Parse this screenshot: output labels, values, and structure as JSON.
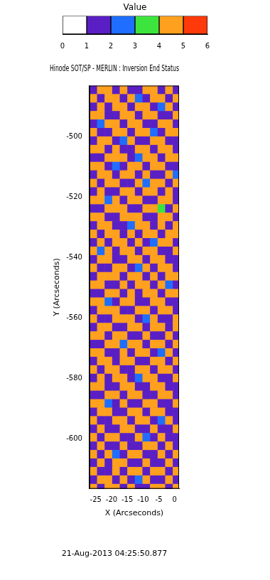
{
  "chart_data": {
    "type": "heatmap",
    "title": "Hinode SOT/SP - MERLIN : Inversion End Status",
    "subtitle": "21-Aug-2013 04:25:50.877",
    "x_label": "X (Arcseconds)",
    "y_label": "Y (Arcseconds)",
    "xlim": [
      -27,
      1.4
    ],
    "ylim": [
      -616.4,
      -483.2
    ],
    "xticks": [
      -25,
      -20,
      -15,
      -10,
      -5,
      0
    ],
    "yticks": [
      -600,
      -580,
      -560,
      -540,
      -520,
      -500
    ],
    "grid": false,
    "x": [
      -25.8,
      -23.4,
      -21,
      -18.6,
      -16.2,
      -13.8,
      -11.4,
      -9,
      -6.6,
      -4.2,
      -1.8,
      0.6
    ],
    "y": [
      -484.6,
      -487.4,
      -490.2,
      -493,
      -495.8,
      -498.6,
      -501.4,
      -504.2,
      -507,
      -509.8,
      -512.6,
      -515.4,
      -518.2,
      -521,
      -523.8,
      -526.6,
      -529.4,
      -532.2,
      -535,
      -537.8,
      -540.6,
      -543.4,
      -546.2,
      -549,
      -551.8,
      -554.6,
      -557.4,
      -560.2,
      -563,
      -565.8,
      -568.6,
      -571.4,
      -574.2,
      -577,
      -579.8,
      -582.6,
      -585.4,
      -588.2,
      -591,
      -593.8,
      -596.6,
      -599.4,
      -602.2,
      -605,
      -607.8,
      -610.6,
      -613.4,
      -616.2
    ],
    "cells": [
      [
        1,
        4,
        4,
        1,
        4,
        1,
        1,
        4,
        4,
        1,
        4,
        1
      ],
      [
        4,
        1,
        4,
        4,
        1,
        4,
        2,
        1,
        4,
        4,
        1,
        4
      ],
      [
        1,
        4,
        1,
        4,
        4,
        1,
        4,
        4,
        1,
        2,
        4,
        1
      ],
      [
        4,
        4,
        1,
        1,
        4,
        4,
        1,
        4,
        4,
        1,
        1,
        4
      ],
      [
        1,
        2,
        4,
        4,
        1,
        4,
        4,
        1,
        1,
        4,
        4,
        1
      ],
      [
        4,
        1,
        1,
        4,
        4,
        1,
        4,
        4,
        2,
        1,
        4,
        4
      ],
      [
        1,
        4,
        4,
        1,
        2,
        4,
        1,
        1,
        4,
        4,
        1,
        1
      ],
      [
        4,
        4,
        1,
        4,
        1,
        1,
        4,
        4,
        1,
        4,
        4,
        1
      ],
      [
        1,
        1,
        4,
        4,
        4,
        1,
        2,
        4,
        4,
        1,
        4,
        4
      ],
      [
        4,
        4,
        1,
        2,
        1,
        4,
        4,
        1,
        4,
        4,
        1,
        1
      ],
      [
        1,
        4,
        4,
        1,
        4,
        4,
        1,
        4,
        1,
        1,
        4,
        2
      ],
      [
        4,
        1,
        4,
        4,
        1,
        1,
        4,
        2,
        4,
        4,
        1,
        4
      ],
      [
        1,
        4,
        1,
        1,
        4,
        4,
        1,
        4,
        4,
        1,
        4,
        1
      ],
      [
        4,
        4,
        2,
        4,
        1,
        4,
        4,
        1,
        1,
        4,
        4,
        1
      ],
      [
        1,
        1,
        4,
        4,
        4,
        1,
        1,
        4,
        4,
        3,
        1,
        4
      ],
      [
        4,
        4,
        1,
        1,
        4,
        4,
        4,
        1,
        1,
        4,
        4,
        1
      ],
      [
        1,
        4,
        4,
        1,
        1,
        2,
        4,
        4,
        1,
        4,
        1,
        4
      ],
      [
        4,
        1,
        4,
        4,
        1,
        4,
        1,
        4,
        4,
        1,
        4,
        4
      ],
      [
        1,
        4,
        1,
        4,
        4,
        1,
        4,
        1,
        2,
        4,
        4,
        1
      ],
      [
        4,
        2,
        4,
        1,
        4,
        4,
        1,
        4,
        4,
        1,
        1,
        4
      ],
      [
        1,
        4,
        4,
        1,
        1,
        4,
        4,
        1,
        4,
        4,
        1,
        1
      ],
      [
        4,
        1,
        1,
        4,
        4,
        1,
        2,
        4,
        1,
        4,
        4,
        1
      ],
      [
        1,
        4,
        4,
        4,
        1,
        4,
        4,
        1,
        4,
        1,
        4,
        4
      ],
      [
        4,
        4,
        1,
        1,
        4,
        1,
        4,
        4,
        1,
        4,
        2,
        1
      ],
      [
        1,
        1,
        4,
        4,
        1,
        4,
        1,
        4,
        4,
        1,
        4,
        4
      ],
      [
        4,
        4,
        2,
        1,
        4,
        4,
        1,
        1,
        4,
        4,
        1,
        1
      ],
      [
        1,
        4,
        4,
        4,
        1,
        1,
        4,
        4,
        1,
        4,
        4,
        1
      ],
      [
        4,
        1,
        1,
        4,
        4,
        4,
        1,
        2,
        4,
        1,
        1,
        4
      ],
      [
        1,
        4,
        4,
        1,
        1,
        4,
        4,
        1,
        4,
        4,
        1,
        4
      ],
      [
        4,
        4,
        1,
        4,
        4,
        1,
        1,
        4,
        1,
        1,
        4,
        1
      ],
      [
        1,
        1,
        4,
        4,
        2,
        4,
        4,
        1,
        4,
        4,
        1,
        4
      ],
      [
        4,
        4,
        1,
        1,
        4,
        1,
        4,
        4,
        1,
        2,
        4,
        1
      ],
      [
        1,
        4,
        4,
        1,
        4,
        4,
        1,
        1,
        4,
        4,
        1,
        4
      ],
      [
        4,
        1,
        4,
        4,
        1,
        1,
        4,
        4,
        1,
        4,
        4,
        1
      ],
      [
        1,
        4,
        1,
        4,
        4,
        1,
        2,
        4,
        4,
        1,
        1,
        4
      ],
      [
        4,
        4,
        1,
        1,
        4,
        4,
        1,
        1,
        4,
        4,
        1,
        1
      ],
      [
        1,
        1,
        4,
        4,
        1,
        4,
        4,
        1,
        1,
        4,
        4,
        1
      ],
      [
        4,
        4,
        2,
        1,
        4,
        1,
        1,
        4,
        4,
        1,
        1,
        4
      ],
      [
        1,
        4,
        4,
        1,
        1,
        4,
        4,
        1,
        4,
        4,
        1,
        1
      ],
      [
        4,
        1,
        1,
        4,
        4,
        1,
        4,
        4,
        1,
        2,
        4,
        1
      ],
      [
        1,
        4,
        1,
        1,
        4,
        4,
        1,
        1,
        4,
        1,
        1,
        4
      ],
      [
        4,
        1,
        4,
        4,
        1,
        1,
        4,
        2,
        1,
        4,
        1,
        1
      ],
      [
        1,
        4,
        1,
        1,
        4,
        1,
        1,
        4,
        4,
        1,
        4,
        1
      ],
      [
        4,
        1,
        4,
        2,
        1,
        4,
        4,
        1,
        1,
        4,
        1,
        4
      ],
      [
        1,
        4,
        1,
        4,
        4,
        1,
        1,
        4,
        1,
        1,
        4,
        1
      ],
      [
        4,
        1,
        1,
        4,
        1,
        4,
        4,
        1,
        4,
        4,
        1,
        4
      ],
      [
        1,
        4,
        4,
        1,
        4,
        1,
        2,
        4,
        1,
        1,
        4,
        1
      ],
      [
        4,
        1,
        4,
        4,
        1,
        4,
        1,
        1,
        4,
        4,
        1,
        4
      ]
    ],
    "colorbar": {
      "title": "Value",
      "range": [
        0,
        6
      ],
      "ticks": [
        0,
        1,
        2,
        3,
        4,
        5,
        6
      ],
      "colors": [
        "#ffffff",
        "#5a1fc4",
        "#1f6eff",
        "#3ee43e",
        "#ffa01e",
        "#ff3a0a"
      ]
    }
  }
}
